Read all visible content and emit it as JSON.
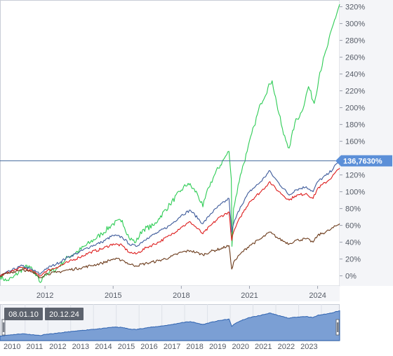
{
  "chart_data": {
    "type": "line",
    "y_unit": "%",
    "y_ticks": [
      "0%",
      "20%",
      "40%",
      "60%",
      "80%",
      "100%",
      "120%",
      "140%",
      "160%",
      "180%",
      "200%",
      "220%",
      "240%",
      "260%",
      "280%",
      "300%",
      "320%"
    ],
    "x_ticks": [
      "2012",
      "2015",
      "2018",
      "2021",
      "2024"
    ],
    "x_range": [
      2010.02,
      2024.97
    ],
    "y_range": [
      -12,
      328
    ],
    "grid": false,
    "crosshair": {
      "value": 136.763,
      "label": "136,7630%"
    },
    "series": [
      {
        "color": "#2ecc55",
        "points": [
          [
            2010.02,
            0
          ],
          [
            2010.3,
            -6
          ],
          [
            2010.6,
            -2
          ],
          [
            2011.0,
            8
          ],
          [
            2011.3,
            12
          ],
          [
            2011.6,
            0
          ],
          [
            2011.8,
            -8
          ],
          [
            2012.0,
            2
          ],
          [
            2012.5,
            8
          ],
          [
            2013.0,
            22
          ],
          [
            2013.5,
            30
          ],
          [
            2014.0,
            40
          ],
          [
            2014.5,
            50
          ],
          [
            2015.0,
            62
          ],
          [
            2015.4,
            66
          ],
          [
            2015.7,
            45
          ],
          [
            2016.0,
            40
          ],
          [
            2016.3,
            55
          ],
          [
            2016.8,
            60
          ],
          [
            2017.0,
            68
          ],
          [
            2017.5,
            85
          ],
          [
            2018.0,
            102
          ],
          [
            2018.3,
            110
          ],
          [
            2018.7,
            98
          ],
          [
            2018.95,
            82
          ],
          [
            2019.2,
            105
          ],
          [
            2019.5,
            122
          ],
          [
            2019.9,
            140
          ],
          [
            2020.1,
            148
          ],
          [
            2020.2,
            115
          ],
          [
            2020.23,
            35
          ],
          [
            2020.3,
            80
          ],
          [
            2020.6,
            120
          ],
          [
            2020.9,
            148
          ],
          [
            2021.2,
            178
          ],
          [
            2021.5,
            205
          ],
          [
            2021.9,
            228
          ],
          [
            2022.0,
            232
          ],
          [
            2022.2,
            205
          ],
          [
            2022.5,
            168
          ],
          [
            2022.75,
            152
          ],
          [
            2023.0,
            182
          ],
          [
            2023.3,
            195
          ],
          [
            2023.6,
            225
          ],
          [
            2023.85,
            205
          ],
          [
            2024.1,
            242
          ],
          [
            2024.4,
            270
          ],
          [
            2024.7,
            300
          ],
          [
            2024.97,
            323
          ]
        ]
      },
      {
        "color": "#3d5a9a",
        "points": [
          [
            2010.02,
            0
          ],
          [
            2010.5,
            6
          ],
          [
            2011.0,
            12
          ],
          [
            2011.6,
            5
          ],
          [
            2011.8,
            2
          ],
          [
            2012.0,
            8
          ],
          [
            2012.5,
            14
          ],
          [
            2013.0,
            22
          ],
          [
            2013.5,
            28
          ],
          [
            2014.0,
            35
          ],
          [
            2014.5,
            40
          ],
          [
            2015.0,
            48
          ],
          [
            2015.4,
            46
          ],
          [
            2015.7,
            38
          ],
          [
            2016.0,
            35
          ],
          [
            2016.5,
            45
          ],
          [
            2017.0,
            52
          ],
          [
            2017.5,
            60
          ],
          [
            2018.0,
            72
          ],
          [
            2018.4,
            78
          ],
          [
            2018.95,
            62
          ],
          [
            2019.3,
            74
          ],
          [
            2019.7,
            84
          ],
          [
            2020.1,
            92
          ],
          [
            2020.22,
            52
          ],
          [
            2020.3,
            62
          ],
          [
            2020.6,
            82
          ],
          [
            2021.0,
            100
          ],
          [
            2021.5,
            112
          ],
          [
            2021.9,
            125
          ],
          [
            2022.0,
            120
          ],
          [
            2022.3,
            110
          ],
          [
            2022.75,
            96
          ],
          [
            2023.0,
            102
          ],
          [
            2023.5,
            106
          ],
          [
            2023.8,
            100
          ],
          [
            2024.0,
            112
          ],
          [
            2024.5,
            122
          ],
          [
            2024.97,
            137
          ]
        ]
      },
      {
        "color": "#dd1c1c",
        "points": [
          [
            2010.02,
            0
          ],
          [
            2010.5,
            5
          ],
          [
            2011.0,
            10
          ],
          [
            2011.6,
            3
          ],
          [
            2011.8,
            0
          ],
          [
            2012.0,
            5
          ],
          [
            2012.5,
            10
          ],
          [
            2013.0,
            16
          ],
          [
            2013.5,
            22
          ],
          [
            2014.0,
            28
          ],
          [
            2014.5,
            32
          ],
          [
            2015.0,
            38
          ],
          [
            2015.4,
            36
          ],
          [
            2015.7,
            28
          ],
          [
            2016.0,
            26
          ],
          [
            2016.5,
            34
          ],
          [
            2017.0,
            40
          ],
          [
            2017.5,
            48
          ],
          [
            2018.0,
            58
          ],
          [
            2018.4,
            64
          ],
          [
            2018.95,
            50
          ],
          [
            2019.3,
            60
          ],
          [
            2019.7,
            70
          ],
          [
            2020.1,
            76
          ],
          [
            2020.22,
            42
          ],
          [
            2020.3,
            52
          ],
          [
            2020.6,
            70
          ],
          [
            2021.0,
            88
          ],
          [
            2021.5,
            100
          ],
          [
            2021.9,
            112
          ],
          [
            2022.0,
            108
          ],
          [
            2022.3,
            100
          ],
          [
            2022.75,
            90
          ],
          [
            2023.0,
            95
          ],
          [
            2023.5,
            98
          ],
          [
            2023.8,
            92
          ],
          [
            2024.0,
            104
          ],
          [
            2024.5,
            114
          ],
          [
            2024.97,
            128
          ]
        ]
      },
      {
        "color": "#6b3a1a",
        "points": [
          [
            2010.02,
            0
          ],
          [
            2010.5,
            4
          ],
          [
            2011.0,
            8
          ],
          [
            2011.6,
            2
          ],
          [
            2011.8,
            -2
          ],
          [
            2012.0,
            2
          ],
          [
            2012.5,
            4
          ],
          [
            2013.0,
            7
          ],
          [
            2013.5,
            9
          ],
          [
            2014.0,
            12
          ],
          [
            2014.5,
            15
          ],
          [
            2015.0,
            20
          ],
          [
            2015.4,
            19
          ],
          [
            2015.7,
            14
          ],
          [
            2016.0,
            12
          ],
          [
            2016.5,
            15
          ],
          [
            2017.0,
            18
          ],
          [
            2017.5,
            22
          ],
          [
            2018.0,
            28
          ],
          [
            2018.4,
            30
          ],
          [
            2018.95,
            25
          ],
          [
            2019.3,
            29
          ],
          [
            2019.7,
            32
          ],
          [
            2020.1,
            36
          ],
          [
            2020.22,
            8
          ],
          [
            2020.3,
            16
          ],
          [
            2020.6,
            26
          ],
          [
            2021.0,
            36
          ],
          [
            2021.5,
            44
          ],
          [
            2021.9,
            52
          ],
          [
            2022.0,
            50
          ],
          [
            2022.3,
            44
          ],
          [
            2022.75,
            38
          ],
          [
            2023.0,
            42
          ],
          [
            2023.5,
            44
          ],
          [
            2023.8,
            40
          ],
          [
            2024.0,
            48
          ],
          [
            2024.5,
            54
          ],
          [
            2024.97,
            62
          ]
        ]
      }
    ],
    "navigator": {
      "start_label": "08.01.10",
      "end_label": "20.12.24",
      "x_ticks": [
        "2010",
        "2011",
        "2012",
        "2013",
        "2014",
        "2015",
        "2016",
        "2017",
        "2018",
        "2019",
        "2020",
        "2021",
        "2022",
        "2023"
      ],
      "fill_color": "#7b9fd4",
      "line_color": "#2f63b0"
    }
  }
}
